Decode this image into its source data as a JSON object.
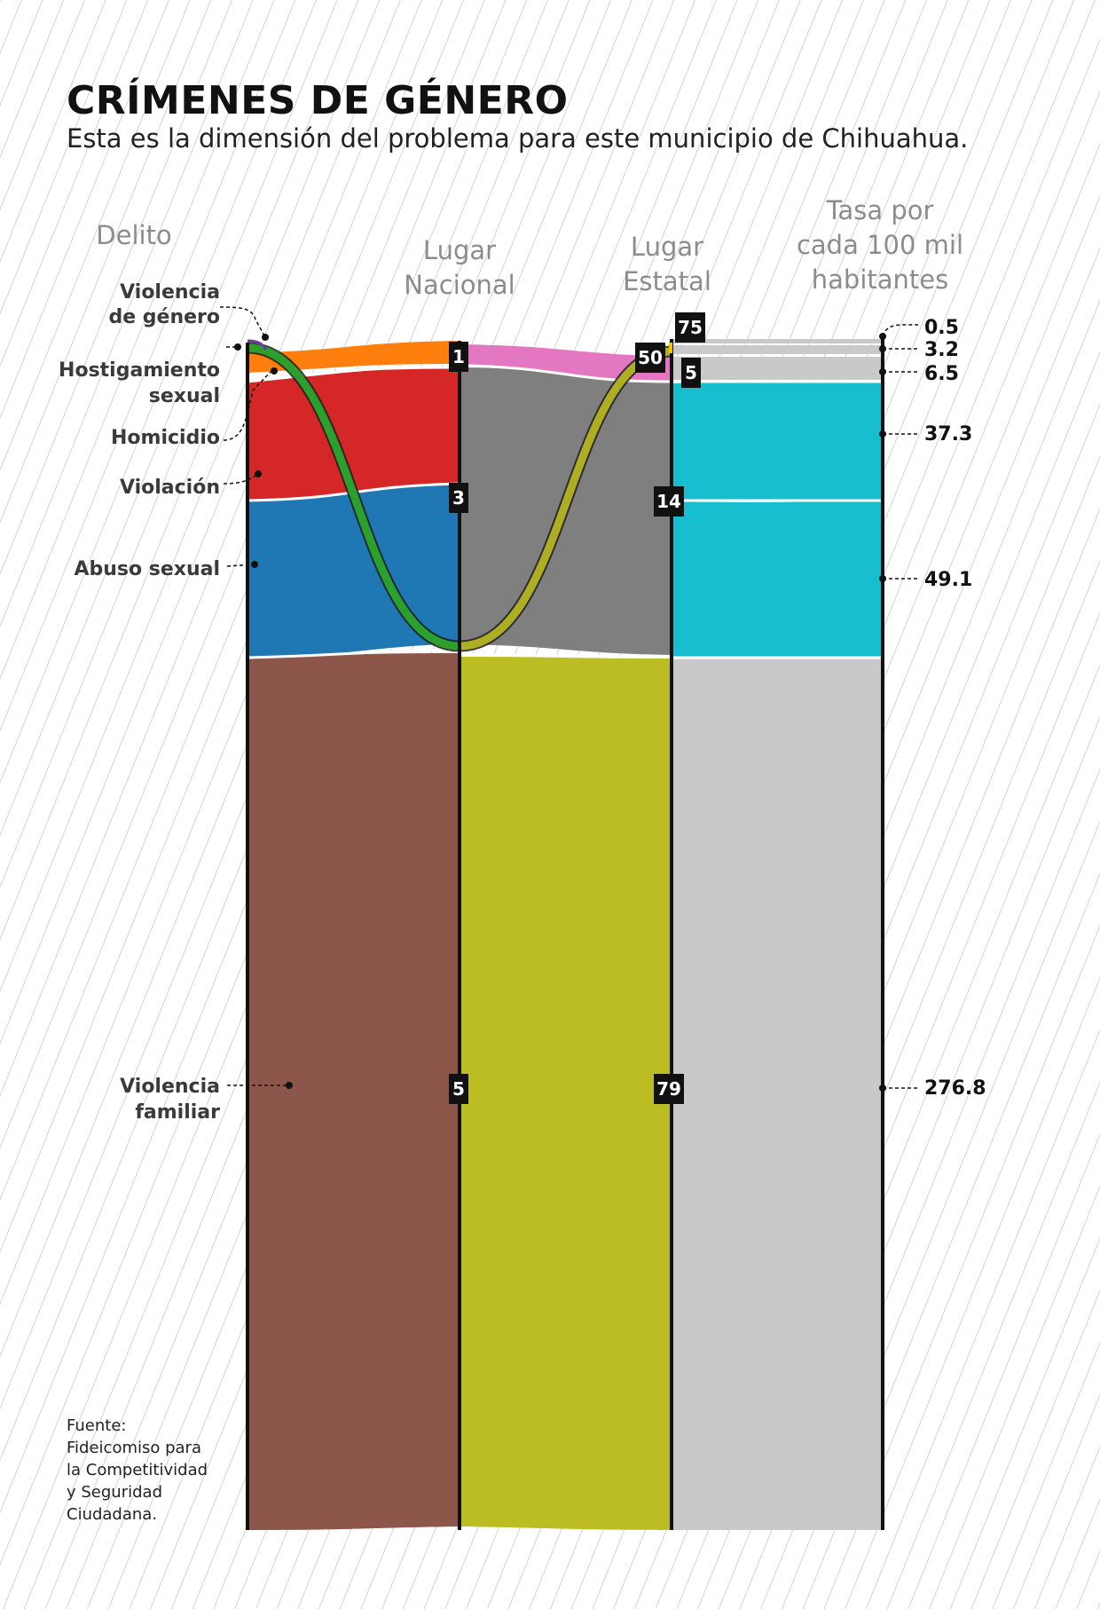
{
  "chart_data": {
    "type": "sankey",
    "title": "CRÍMENES DE GÉNERO",
    "subtitle": "Esta es la dimensión del problema para este municipio de Chihuahua.",
    "columns": [
      {
        "key": "delito",
        "label": [
          "Delito"
        ]
      },
      {
        "key": "nacional",
        "label": [
          "Lugar",
          "Nacional"
        ]
      },
      {
        "key": "estatal",
        "label": [
          "Lugar",
          "Estatal"
        ]
      },
      {
        "key": "tasa",
        "label": [
          "Tasa por",
          "cada 100 mil",
          "habitantes"
        ]
      }
    ],
    "crimes": [
      {
        "name": [
          "Violencia",
          "de género"
        ],
        "lugar_nacional": null,
        "lugar_estatal": "75",
        "tasa": "0.5",
        "color": "#6a3d9a"
      },
      {
        "name": [
          "Hostigamiento",
          "sexual"
        ],
        "lugar_nacional": null,
        "lugar_estatal": null,
        "tasa": "3.2",
        "color": "#2ca02c"
      },
      {
        "name": [
          "Homicidio"
        ],
        "lugar_nacional": "1",
        "lugar_estatal": "50",
        "tasa": "6.5",
        "color": "#ff7f0e"
      },
      {
        "name": [
          "Violación"
        ],
        "lugar_nacional": null,
        "lugar_estatal": "5",
        "tasa": "37.3",
        "color": "#d62728"
      },
      {
        "name": [
          "Abuso sexual"
        ],
        "lugar_nacional": "3",
        "lugar_estatal": "14",
        "tasa": "49.1",
        "color": "#1f77b4"
      },
      {
        "name": [
          "Violencia",
          "familiar"
        ],
        "lugar_nacional": "5",
        "lugar_estatal": "79",
        "tasa": "276.8",
        "color": "#8c564b"
      }
    ],
    "colors": {
      "pink": "#e377c2",
      "gray": "#7f7f7f",
      "olive": "#bcbd22",
      "cyan": "#17becf",
      "light_gray": "#c9c9c9"
    },
    "source": [
      "Fuente:",
      "Fideicomiso para",
      "la Competitividad",
      "y Seguridad",
      "Ciudadana."
    ]
  }
}
